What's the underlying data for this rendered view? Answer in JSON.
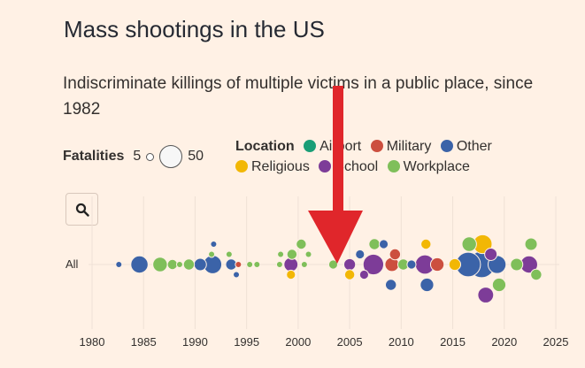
{
  "title": "Mass shootings in the US",
  "subtitle": "Indiscriminate killings of multiple victims in a public place, since 1982",
  "legend": {
    "fatalities_label": "Fatalities",
    "size_min": "5",
    "size_max": "50",
    "location_label": "Location",
    "items": [
      {
        "label": "Airport",
        "color": "#1a9e77"
      },
      {
        "label": "Military",
        "color": "#cc4f3f"
      },
      {
        "label": "Other",
        "color": "#3b63a8"
      },
      {
        "label": "Religious",
        "color": "#f2b705"
      },
      {
        "label": "School",
        "color": "#7d3c98"
      },
      {
        "label": "Workplace",
        "color": "#7fbf5a"
      }
    ]
  },
  "search_icon": "search-icon",
  "annotation_icon": "arrow-down-icon",
  "chart_data": {
    "type": "scatter",
    "title": "Mass shootings in the US",
    "row_label": "All",
    "xlim": [
      1979,
      2025.5
    ],
    "x_ticks": [
      "1980",
      "1985",
      "1990",
      "1995",
      "2000",
      "2005",
      "2010",
      "2015",
      "2020",
      "2025"
    ],
    "x_tick_values": [
      1980,
      1985,
      1990,
      1995,
      2000,
      2005,
      2010,
      2015,
      2020,
      2025
    ],
    "size_scale": {
      "min_fatalities": 5,
      "max_fatalities": 50
    },
    "points": [
      {
        "x": 1982.6,
        "y": 0,
        "f": 5,
        "loc": "Other"
      },
      {
        "x": 1984.6,
        "y": 0,
        "f": 21,
        "loc": "Other"
      },
      {
        "x": 1986.6,
        "y": 0,
        "f": 14,
        "loc": "Workplace"
      },
      {
        "x": 1987.8,
        "y": 0,
        "f": 7,
        "loc": "Workplace"
      },
      {
        "x": 1988.5,
        "y": 0,
        "f": 5,
        "loc": "Workplace"
      },
      {
        "x": 1989.4,
        "y": 0,
        "f": 8,
        "loc": "Workplace"
      },
      {
        "x": 1990.5,
        "y": 0,
        "f": 10,
        "loc": "Other"
      },
      {
        "x": 1991.7,
        "y": 0,
        "f": 24,
        "loc": "Other"
      },
      {
        "x": 1991.6,
        "y": 1,
        "f": 5,
        "loc": "Workplace"
      },
      {
        "x": 1991.8,
        "y": 2,
        "f": 5,
        "loc": "Other"
      },
      {
        "x": 1993.5,
        "y": 0,
        "f": 8,
        "loc": "Other"
      },
      {
        "x": 1994.2,
        "y": 0,
        "f": 5,
        "loc": "Military"
      },
      {
        "x": 1993.3,
        "y": 1,
        "f": 5,
        "loc": "Workplace"
      },
      {
        "x": 1994.0,
        "y": -1,
        "f": 5,
        "loc": "Other"
      },
      {
        "x": 1995.3,
        "y": 0,
        "f": 5,
        "loc": "Workplace"
      },
      {
        "x": 1996.0,
        "y": 0,
        "f": 5,
        "loc": "Workplace"
      },
      {
        "x": 1998.2,
        "y": 0,
        "f": 5,
        "loc": "Workplace"
      },
      {
        "x": 1999.3,
        "y": 0,
        "f": 13,
        "loc": "School"
      },
      {
        "x": 1998.3,
        "y": 1,
        "f": 5,
        "loc": "Workplace"
      },
      {
        "x": 1999.4,
        "y": 1,
        "f": 7,
        "loc": "Workplace"
      },
      {
        "x": 1999.3,
        "y": -1,
        "f": 6,
        "loc": "Religious"
      },
      {
        "x": 2000.3,
        "y": 2,
        "f": 7,
        "loc": "Workplace"
      },
      {
        "x": 2000.6,
        "y": 0,
        "f": 5,
        "loc": "Workplace"
      },
      {
        "x": 2001.0,
        "y": 1,
        "f": 5,
        "loc": "Workplace"
      },
      {
        "x": 2003.4,
        "y": 0,
        "f": 6,
        "loc": "Workplace"
      },
      {
        "x": 2005.0,
        "y": 0,
        "f": 9,
        "loc": "School"
      },
      {
        "x": 2005.0,
        "y": -1,
        "f": 7,
        "loc": "Religious"
      },
      {
        "x": 2006.0,
        "y": 1,
        "f": 6,
        "loc": "Other"
      },
      {
        "x": 2006.4,
        "y": -1,
        "f": 6,
        "loc": "School"
      },
      {
        "x": 2007.3,
        "y": 0,
        "f": 32,
        "loc": "School"
      },
      {
        "x": 2007.4,
        "y": 2,
        "f": 8,
        "loc": "Workplace"
      },
      {
        "x": 2008.3,
        "y": 2,
        "f": 6,
        "loc": "Other"
      },
      {
        "x": 2009.1,
        "y": 0,
        "f": 13,
        "loc": "Military"
      },
      {
        "x": 2009.4,
        "y": 1,
        "f": 8,
        "loc": "Military"
      },
      {
        "x": 2009.0,
        "y": -2,
        "f": 8,
        "loc": "Other"
      },
      {
        "x": 2010.2,
        "y": 0,
        "f": 8,
        "loc": "Workplace"
      },
      {
        "x": 2011.0,
        "y": 0,
        "f": 6,
        "loc": "Other"
      },
      {
        "x": 2012.3,
        "y": 0,
        "f": 27,
        "loc": "School"
      },
      {
        "x": 2012.4,
        "y": 2,
        "f": 7,
        "loc": "Religious"
      },
      {
        "x": 2012.5,
        "y": -2,
        "f": 12,
        "loc": "Other"
      },
      {
        "x": 2013.5,
        "y": 0,
        "f": 12,
        "loc": "Military"
      },
      {
        "x": 2015.2,
        "y": 0,
        "f": 9,
        "loc": "Religious"
      },
      {
        "x": 2016.5,
        "y": 0,
        "f": 49,
        "loc": "Other"
      },
      {
        "x": 2016.6,
        "y": 2,
        "f": 14,
        "loc": "Workplace"
      },
      {
        "x": 2017.8,
        "y": 0,
        "f": 58,
        "loc": "Other"
      },
      {
        "x": 2017.9,
        "y": 2,
        "f": 26,
        "loc": "Religious"
      },
      {
        "x": 2018.2,
        "y": -3,
        "f": 17,
        "loc": "School"
      },
      {
        "x": 2018.7,
        "y": 1,
        "f": 10,
        "loc": "School"
      },
      {
        "x": 2019.3,
        "y": 0,
        "f": 23,
        "loc": "Other"
      },
      {
        "x": 2019.5,
        "y": -2,
        "f": 12,
        "loc": "Workplace"
      },
      {
        "x": 2021.2,
        "y": 0,
        "f": 10,
        "loc": "Workplace"
      },
      {
        "x": 2022.4,
        "y": 0,
        "f": 21,
        "loc": "School"
      },
      {
        "x": 2022.6,
        "y": 2,
        "f": 10,
        "loc": "Workplace"
      },
      {
        "x": 2023.1,
        "y": -1,
        "f": 8,
        "loc": "Workplace"
      }
    ]
  }
}
